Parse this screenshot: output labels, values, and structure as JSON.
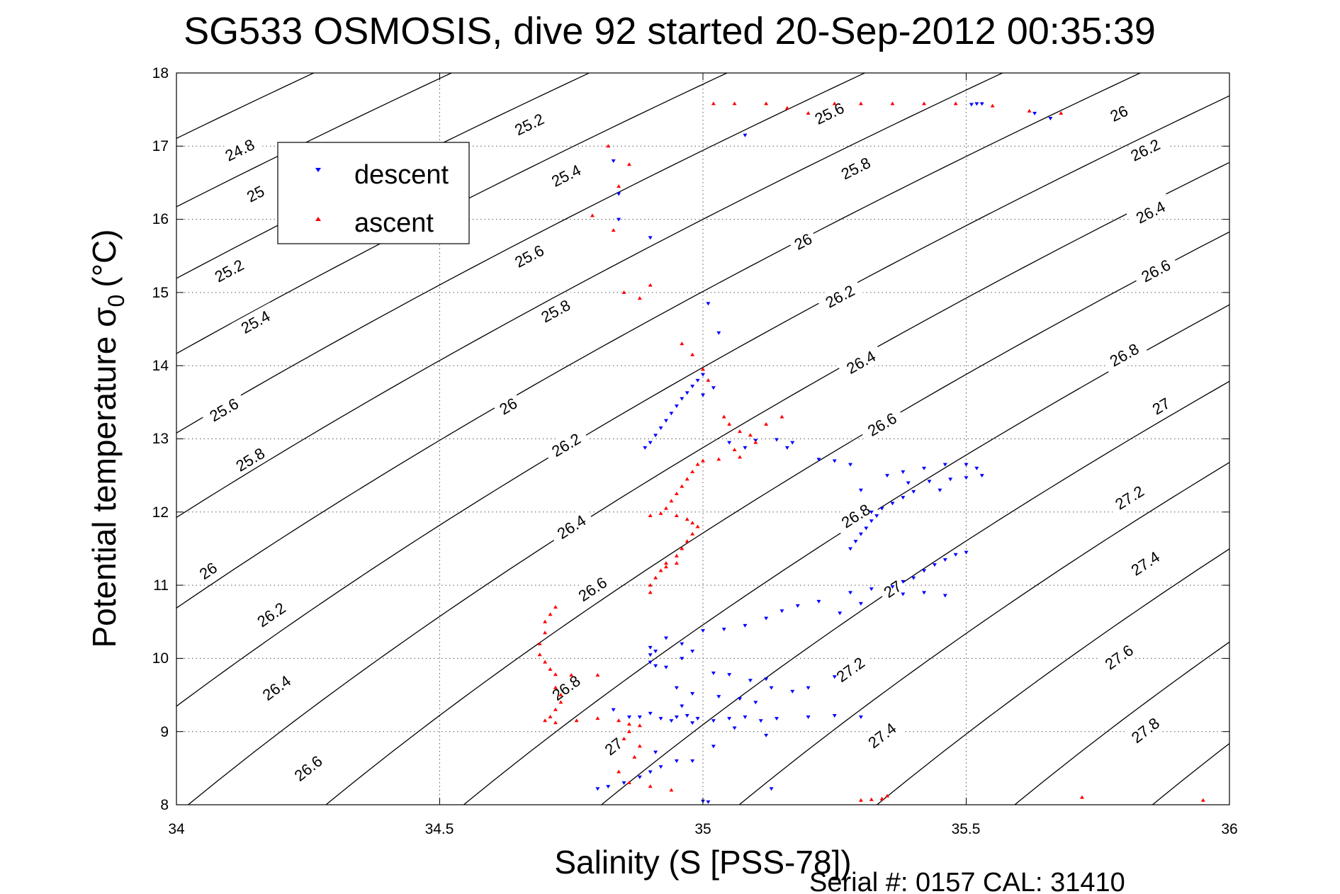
{
  "chart_data": {
    "type": "scatter",
    "title": "SG533 OSMOSIS, dive 92 started 20-Sep-2012 00:35:39",
    "xlabel": "Salinity (S [PSS-78])",
    "ylabel_main": "Potential temperature σ",
    "ylabel_sub": "0",
    "ylabel_unit": "(°C)",
    "footer": "Serial #: 0157  CAL: 31410",
    "xlim": [
      34,
      36
    ],
    "ylim": [
      8,
      18
    ],
    "xticks": [
      34,
      34.5,
      35,
      35.5,
      36
    ],
    "yticks": [
      8,
      9,
      10,
      11,
      12,
      13,
      14,
      15,
      16,
      17,
      18
    ],
    "x_tick_labels": [
      "34",
      "34.5",
      "35",
      "35.5",
      "36"
    ],
    "y_tick_labels": [
      "8",
      "9",
      "10",
      "11",
      "12",
      "13",
      "14",
      "15",
      "16",
      "17",
      "18"
    ],
    "grid": true,
    "legend_position": "upper-left",
    "series": [
      {
        "name": "descent",
        "marker": "triangle-down",
        "color": "#0000ff",
        "points": [
          [
            35.52,
            17.58
          ],
          [
            35.51,
            17.57
          ],
          [
            35.53,
            17.58
          ],
          [
            35.63,
            17.45
          ],
          [
            35.66,
            17.38
          ],
          [
            35.08,
            17.15
          ],
          [
            34.83,
            16.8
          ],
          [
            34.84,
            16.35
          ],
          [
            34.84,
            16.0
          ],
          [
            34.9,
            15.75
          ],
          [
            35.01,
            14.85
          ],
          [
            35.03,
            14.45
          ],
          [
            35.0,
            13.88
          ],
          [
            34.99,
            13.8
          ],
          [
            34.98,
            13.72
          ],
          [
            34.97,
            13.63
          ],
          [
            34.96,
            13.55
          ],
          [
            34.95,
            13.45
          ],
          [
            34.94,
            13.35
          ],
          [
            34.93,
            13.25
          ],
          [
            34.92,
            13.15
          ],
          [
            34.91,
            13.05
          ],
          [
            34.9,
            12.95
          ],
          [
            34.89,
            12.88
          ],
          [
            35.02,
            13.7
          ],
          [
            35.0,
            13.6
          ],
          [
            35.05,
            12.95
          ],
          [
            35.1,
            12.98
          ],
          [
            35.14,
            12.99
          ],
          [
            35.17,
            12.95
          ],
          [
            35.16,
            12.88
          ],
          [
            35.08,
            12.88
          ],
          [
            35.22,
            12.72
          ],
          [
            35.25,
            12.7
          ],
          [
            35.28,
            12.65
          ],
          [
            35.28,
            11.5
          ],
          [
            35.29,
            11.6
          ],
          [
            35.3,
            11.7
          ],
          [
            35.31,
            11.78
          ],
          [
            35.32,
            11.88
          ],
          [
            35.33,
            11.95
          ],
          [
            35.34,
            12.05
          ],
          [
            35.36,
            12.12
          ],
          [
            35.38,
            12.2
          ],
          [
            35.4,
            12.28
          ],
          [
            35.32,
            12.0
          ],
          [
            35.3,
            12.3
          ],
          [
            35.35,
            12.5
          ],
          [
            35.38,
            12.55
          ],
          [
            35.42,
            12.6
          ],
          [
            35.46,
            12.65
          ],
          [
            35.5,
            12.65
          ],
          [
            35.52,
            12.6
          ],
          [
            35.39,
            12.4
          ],
          [
            35.43,
            12.42
          ],
          [
            35.47,
            12.45
          ],
          [
            35.5,
            12.47
          ],
          [
            35.53,
            12.5
          ],
          [
            35.45,
            12.3
          ],
          [
            35.38,
            11.05
          ],
          [
            35.4,
            11.1
          ],
          [
            35.42,
            11.2
          ],
          [
            35.44,
            11.28
          ],
          [
            35.46,
            11.35
          ],
          [
            35.48,
            11.42
          ],
          [
            35.5,
            11.45
          ],
          [
            35.36,
            10.98
          ],
          [
            35.32,
            10.95
          ],
          [
            35.38,
            10.88
          ],
          [
            35.42,
            10.9
          ],
          [
            35.46,
            10.86
          ],
          [
            35.22,
            10.78
          ],
          [
            35.18,
            10.72
          ],
          [
            35.15,
            10.65
          ],
          [
            35.12,
            10.55
          ],
          [
            35.08,
            10.45
          ],
          [
            35.04,
            10.4
          ],
          [
            35.0,
            10.38
          ],
          [
            35.26,
            10.62
          ],
          [
            35.3,
            10.75
          ],
          [
            35.28,
            10.9
          ],
          [
            34.9,
            10.15
          ],
          [
            34.91,
            10.1
          ],
          [
            34.9,
            10.05
          ],
          [
            34.9,
            9.95
          ],
          [
            34.91,
            9.9
          ],
          [
            34.93,
            9.88
          ],
          [
            34.96,
            10.0
          ],
          [
            34.98,
            10.1
          ],
          [
            34.96,
            10.2
          ],
          [
            34.93,
            10.28
          ],
          [
            35.02,
            9.8
          ],
          [
            35.05,
            9.78
          ],
          [
            35.09,
            9.7
          ],
          [
            35.13,
            9.6
          ],
          [
            35.17,
            9.55
          ],
          [
            35.2,
            9.6
          ],
          [
            35.25,
            9.75
          ],
          [
            34.95,
            9.6
          ],
          [
            34.98,
            9.52
          ],
          [
            35.03,
            9.48
          ],
          [
            35.07,
            9.45
          ],
          [
            35.1,
            9.4
          ],
          [
            34.96,
            9.35
          ],
          [
            35.12,
            9.72
          ],
          [
            34.88,
            9.2
          ],
          [
            34.92,
            9.18
          ],
          [
            34.95,
            9.2
          ],
          [
            34.97,
            9.22
          ],
          [
            34.99,
            9.18
          ],
          [
            35.02,
            9.15
          ],
          [
            35.05,
            9.18
          ],
          [
            35.08,
            9.2
          ],
          [
            35.11,
            9.15
          ],
          [
            35.14,
            9.18
          ],
          [
            35.2,
            9.2
          ],
          [
            35.25,
            9.22
          ],
          [
            35.3,
            9.2
          ],
          [
            34.9,
            9.25
          ],
          [
            34.94,
            9.15
          ],
          [
            34.98,
            9.12
          ],
          [
            35.06,
            9.05
          ],
          [
            35.12,
            8.95
          ],
          [
            35.02,
            8.8
          ],
          [
            34.98,
            8.6
          ],
          [
            34.8,
            8.22
          ],
          [
            34.82,
            8.25
          ],
          [
            34.85,
            8.3
          ],
          [
            34.88,
            8.38
          ],
          [
            34.9,
            8.45
          ],
          [
            34.92,
            8.52
          ],
          [
            34.95,
            8.6
          ],
          [
            35.0,
            8.05
          ],
          [
            35.01,
            8.04
          ],
          [
            35.13,
            8.22
          ],
          [
            34.83,
            9.3
          ],
          [
            34.86,
            9.2
          ],
          [
            34.91,
            8.72
          ]
        ]
      },
      {
        "name": "ascent",
        "marker": "triangle-up",
        "color": "#ff0000",
        "points": [
          [
            35.02,
            17.58
          ],
          [
            35.06,
            17.58
          ],
          [
            35.12,
            17.58
          ],
          [
            35.16,
            17.52
          ],
          [
            35.2,
            17.45
          ],
          [
            35.25,
            17.58
          ],
          [
            35.3,
            17.58
          ],
          [
            35.36,
            17.58
          ],
          [
            35.42,
            17.58
          ],
          [
            35.48,
            17.58
          ],
          [
            35.55,
            17.55
          ],
          [
            35.62,
            17.48
          ],
          [
            35.68,
            17.45
          ],
          [
            34.82,
            17.0
          ],
          [
            34.86,
            16.75
          ],
          [
            34.84,
            16.45
          ],
          [
            34.79,
            16.05
          ],
          [
            34.83,
            15.85
          ],
          [
            34.85,
            15.0
          ],
          [
            34.88,
            14.92
          ],
          [
            34.9,
            15.1
          ],
          [
            34.96,
            14.3
          ],
          [
            34.98,
            14.15
          ],
          [
            35.0,
            13.95
          ],
          [
            35.01,
            13.8
          ],
          [
            35.04,
            13.3
          ],
          [
            35.05,
            13.2
          ],
          [
            35.07,
            13.1
          ],
          [
            35.09,
            13.05
          ],
          [
            35.12,
            13.2
          ],
          [
            35.15,
            13.3
          ],
          [
            35.1,
            12.95
          ],
          [
            35.06,
            12.85
          ],
          [
            35.07,
            12.75
          ],
          [
            35.03,
            12.72
          ],
          [
            35.0,
            12.7
          ],
          [
            34.99,
            12.65
          ],
          [
            34.98,
            12.55
          ],
          [
            34.97,
            12.45
          ],
          [
            34.96,
            12.35
          ],
          [
            34.95,
            12.25
          ],
          [
            34.94,
            12.15
          ],
          [
            34.93,
            12.05
          ],
          [
            34.92,
            11.98
          ],
          [
            34.9,
            11.95
          ],
          [
            34.95,
            11.95
          ],
          [
            34.97,
            11.9
          ],
          [
            34.98,
            11.85
          ],
          [
            34.99,
            11.8
          ],
          [
            34.98,
            11.7
          ],
          [
            34.97,
            11.6
          ],
          [
            34.96,
            11.5
          ],
          [
            34.95,
            11.4
          ],
          [
            34.93,
            11.3
          ],
          [
            34.92,
            11.2
          ],
          [
            34.91,
            11.1
          ],
          [
            34.9,
            11.0
          ],
          [
            34.9,
            10.9
          ],
          [
            34.93,
            11.25
          ],
          [
            34.95,
            11.3
          ],
          [
            34.72,
            10.7
          ],
          [
            34.71,
            10.6
          ],
          [
            34.7,
            10.5
          ],
          [
            34.7,
            10.35
          ],
          [
            34.69,
            10.2
          ],
          [
            34.69,
            10.05
          ],
          [
            34.7,
            9.95
          ],
          [
            34.71,
            9.85
          ],
          [
            34.72,
            9.78
          ],
          [
            34.75,
            9.77
          ],
          [
            34.8,
            9.77
          ],
          [
            34.72,
            9.6
          ],
          [
            34.73,
            9.5
          ],
          [
            34.73,
            9.4
          ],
          [
            34.72,
            9.3
          ],
          [
            34.71,
            9.2
          ],
          [
            34.7,
            9.15
          ],
          [
            34.72,
            9.12
          ],
          [
            34.76,
            9.15
          ],
          [
            34.8,
            9.18
          ],
          [
            34.84,
            9.15
          ],
          [
            34.86,
            9.1
          ],
          [
            34.88,
            9.08
          ],
          [
            34.86,
            9.0
          ],
          [
            34.85,
            8.9
          ],
          [
            34.88,
            8.8
          ],
          [
            34.87,
            8.65
          ],
          [
            34.84,
            8.45
          ],
          [
            34.86,
            8.3
          ],
          [
            34.9,
            8.25
          ],
          [
            34.94,
            8.2
          ],
          [
            35.3,
            8.06
          ],
          [
            35.32,
            8.07
          ],
          [
            35.34,
            8.08
          ],
          [
            35.35,
            8.12
          ],
          [
            35.72,
            8.1
          ],
          [
            35.95,
            8.06
          ]
        ]
      }
    ],
    "contours": [
      {
        "level": "24.8",
        "label_at": [
          34.12,
          16.95
        ]
      },
      {
        "level": "25",
        "label_at": [
          34.15,
          16.35
        ]
      },
      {
        "level": "25.2",
        "label_at": [
          34.1,
          15.3
        ]
      },
      {
        "level": "25.4",
        "label_at": [
          34.15,
          14.6
        ]
      },
      {
        "level": "25.6",
        "label_at": [
          34.09,
          13.4
        ]
      },
      {
        "level": "25.8",
        "label_at": [
          34.14,
          12.72
        ]
      },
      {
        "level": "26",
        "label_at": [
          34.06,
          11.2
        ]
      },
      {
        "level": "26.2",
        "label_at": [
          34.18,
          10.6
        ]
      },
      {
        "level": "26.4",
        "label_at": [
          34.19,
          9.6
        ]
      },
      {
        "level": "26.6",
        "label_at": [
          34.25,
          8.5
        ]
      },
      {
        "level": "25.2",
        "label_at": [
          34.67,
          17.3
        ]
      },
      {
        "level": "25.4",
        "label_at": [
          34.74,
          16.6
        ]
      },
      {
        "level": "25.6",
        "label_at": [
          34.67,
          15.5
        ]
      },
      {
        "level": "25.8",
        "label_at": [
          34.72,
          14.75
        ]
      },
      {
        "level": "26",
        "label_at": [
          34.63,
          13.45
        ]
      },
      {
        "level": "26.2",
        "label_at": [
          34.74,
          12.92
        ]
      },
      {
        "level": "26.4",
        "label_at": [
          34.75,
          11.8
        ]
      },
      {
        "level": "26.6",
        "label_at": [
          34.79,
          10.95
        ]
      },
      {
        "level": "26.8",
        "label_at": [
          34.74,
          9.6
        ]
      },
      {
        "level": "27",
        "label_at": [
          34.83,
          8.8
        ]
      },
      {
        "level": "25.6",
        "label_at": [
          35.24,
          17.45
        ]
      },
      {
        "level": "25.8",
        "label_at": [
          35.29,
          16.7
        ]
      },
      {
        "level": "26",
        "label_at": [
          35.19,
          15.7
        ]
      },
      {
        "level": "26.2",
        "label_at": [
          35.26,
          14.95
        ]
      },
      {
        "level": "26.4",
        "label_at": [
          35.3,
          14.05
        ]
      },
      {
        "level": "26.6",
        "label_at": [
          35.34,
          13.2
        ]
      },
      {
        "level": "26.8",
        "label_at": [
          35.29,
          11.95
        ]
      },
      {
        "level": "27",
        "label_at": [
          35.36,
          10.95
        ]
      },
      {
        "level": "27.2",
        "label_at": [
          35.28,
          9.85
        ]
      },
      {
        "level": "27.4",
        "label_at": [
          35.34,
          8.95
        ]
      },
      {
        "level": "26",
        "label_at": [
          35.79,
          17.45
        ]
      },
      {
        "level": "26.2",
        "label_at": [
          35.84,
          16.95
        ]
      },
      {
        "level": "26.4",
        "label_at": [
          35.85,
          16.1
        ]
      },
      {
        "level": "26.6",
        "label_at": [
          35.86,
          15.3
        ]
      },
      {
        "level": "26.8",
        "label_at": [
          35.8,
          14.15
        ]
      },
      {
        "level": "27",
        "label_at": [
          35.87,
          13.45
        ]
      },
      {
        "level": "27.2",
        "label_at": [
          35.81,
          12.2
        ]
      },
      {
        "level": "27.4",
        "label_at": [
          35.84,
          11.3
        ]
      },
      {
        "level": "27.6",
        "label_at": [
          35.79,
          10.02
        ]
      },
      {
        "level": "27.8",
        "label_at": [
          35.84,
          9.02
        ]
      }
    ]
  }
}
